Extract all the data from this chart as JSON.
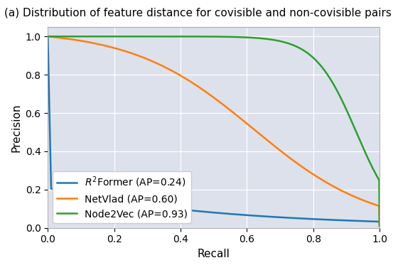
{
  "title": "(a) Distribution of feature distance for covisible and non-covisible pairs",
  "xlabel": "Recall",
  "ylabel": "Precision",
  "xlim": [
    0.0,
    1.0
  ],
  "ylim": [
    0.0,
    1.05
  ],
  "background_color": "#dde1ec",
  "grid": true,
  "legend": [
    {
      "label": "$R^2$Former (AP=0.24)",
      "color": "#1f77b4"
    },
    {
      "label": "NetVlad (AP=0.60)",
      "color": "#ff7f0e"
    },
    {
      "label": "Node2Vec (AP=0.93)",
      "color": "#2ca02c"
    }
  ],
  "title_fontsize": 11,
  "axis_fontsize": 11,
  "legend_fontsize": 10
}
